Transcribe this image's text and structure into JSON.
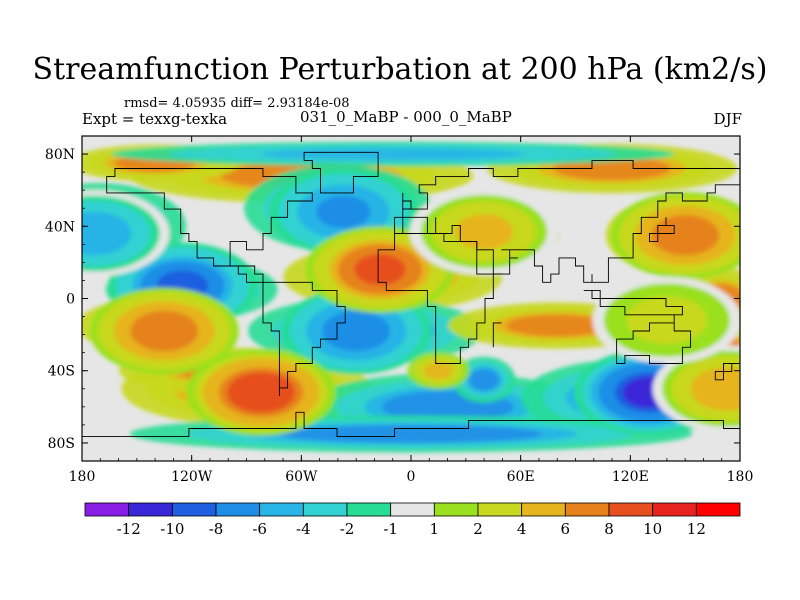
{
  "header": {
    "title": "Streamfunction Perturbation at 200 hPa (km2/s)",
    "stats": "rmsd= 4.05935 diff= 2.93184e-08",
    "experiment": "Expt = texxg-texka",
    "comparison": "031_0_MaBP - 000_0_MaBP",
    "season": "DJF"
  },
  "chart_data": {
    "type": "heatmap",
    "projection": "cylindrical equidistant",
    "variable": "Streamfunction perturbation",
    "level": "200 hPa",
    "units": "km2/s",
    "x_range": [
      -180,
      180
    ],
    "y_range": [
      -90,
      90
    ],
    "x_ticks": [
      {
        "value": -180,
        "label": "180"
      },
      {
        "value": -120,
        "label": "120W"
      },
      {
        "value": -60,
        "label": "60W"
      },
      {
        "value": 0,
        "label": "0"
      },
      {
        "value": 60,
        "label": "60E"
      },
      {
        "value": 120,
        "label": "120E"
      },
      {
        "value": 180,
        "label": "180"
      }
    ],
    "y_ticks": [
      {
        "value": 80,
        "label": "80N"
      },
      {
        "value": 40,
        "label": "40N"
      },
      {
        "value": 0,
        "label": "0"
      },
      {
        "value": -40,
        "label": "40S"
      },
      {
        "value": -80,
        "label": "80S"
      }
    ],
    "colorbar": {
      "labels": [
        "-12",
        "-10",
        "-8",
        "-6",
        "-4",
        "-2",
        "-1",
        "1",
        "2",
        "4",
        "6",
        "8",
        "10",
        "12"
      ],
      "colors": [
        "#8a1ee6",
        "#3a28d8",
        "#1f5fe0",
        "#1f8ee6",
        "#28b4e6",
        "#32d2d2",
        "#28dc96",
        "#e6e6e6",
        "#9be01e",
        "#c8d81e",
        "#e6b41e",
        "#e6821e",
        "#e6501e",
        "#e6231e",
        "#ff0000"
      ]
    },
    "features": [
      {
        "name": "strongest negative center",
        "lon": 130,
        "lat": -52,
        "value": -12
      },
      {
        "name": "negative center",
        "lon": -125,
        "lat": 7,
        "value": -10
      },
      {
        "name": "negative center",
        "lon": -30,
        "lat": -18,
        "value": -8
      },
      {
        "name": "negative center",
        "lon": -37,
        "lat": 48,
        "value": -7
      },
      {
        "name": "negative center",
        "lon": -173,
        "lat": 36,
        "value": -6
      },
      {
        "name": "positive center",
        "lon": -82,
        "lat": -52,
        "value": 11
      },
      {
        "name": "positive center",
        "lon": -17,
        "lat": 16,
        "value": 10
      },
      {
        "name": "positive center",
        "lon": 150,
        "lat": 35,
        "value": 9
      },
      {
        "name": "positive center",
        "lon": -135,
        "lat": -18,
        "value": 8
      },
      {
        "name": "positive center",
        "lon": 173,
        "lat": -50,
        "value": 6
      },
      {
        "name": "positive center",
        "lon": 40,
        "lat": 37,
        "value": 5
      },
      {
        "name": "positive center",
        "lon": 140,
        "lat": -12,
        "value": 4
      }
    ]
  }
}
